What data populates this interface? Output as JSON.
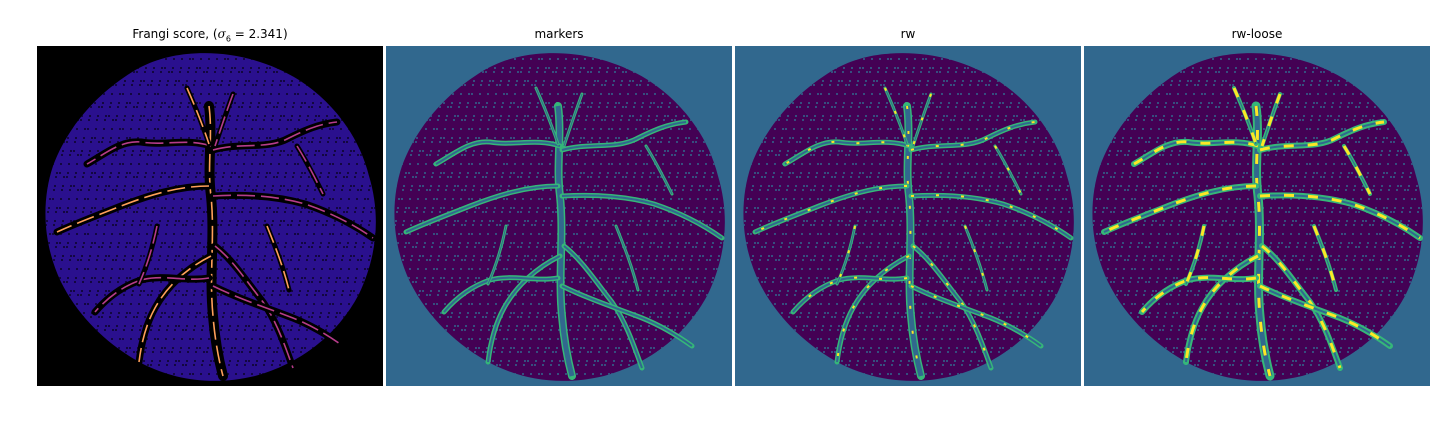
{
  "figure": {
    "panels": [
      {
        "id": "frangi",
        "title_prefix": "Frangi score, (",
        "title_sigma": "σ",
        "title_sub": "6",
        "title_suffix": " = 2.341)",
        "background": "#000000",
        "tissue_color": "#2a108e",
        "vessel_colors": [
          "#b63c8a",
          "#ff9f5a"
        ]
      },
      {
        "id": "markers",
        "title": "markers",
        "background": "#31688e",
        "tissue_color": "#440154",
        "vessel_colors": [
          "#35b779"
        ]
      },
      {
        "id": "rw",
        "title": "rw",
        "background": "#31688e",
        "tissue_color": "#440154",
        "vessel_colors": [
          "#35b779",
          "#fde725"
        ]
      },
      {
        "id": "rw-loose",
        "title": "rw-loose",
        "background": "#31688e",
        "tissue_color": "#440154",
        "vessel_colors": [
          "#35b779",
          "#fde725"
        ]
      }
    ]
  }
}
